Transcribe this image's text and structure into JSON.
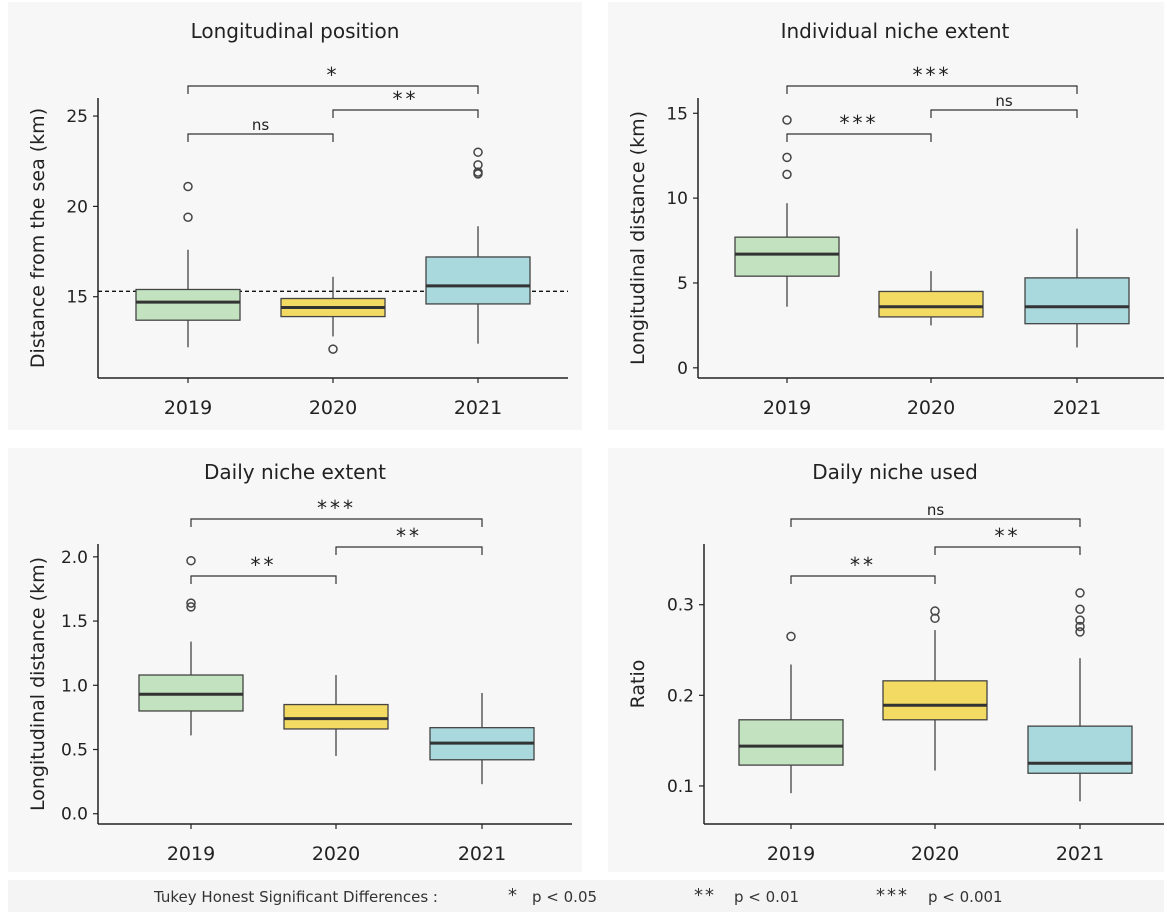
{
  "chart_data": [
    {
      "type": "boxplot",
      "title": "Longitudinal position",
      "ylabel": "Distance from the sea (km)",
      "categories": [
        "2019",
        "2020",
        "2021"
      ],
      "ylim": [
        10.5,
        26
      ],
      "yticks": [
        15,
        20,
        25
      ],
      "hline": 15.3,
      "boxes": [
        {
          "category": "2019",
          "min": 12.2,
          "q1": 13.7,
          "median": 14.7,
          "q3": 15.4,
          "max": 17.6,
          "outliers": [
            19.4,
            21.1
          ],
          "color": "#c3e3c0"
        },
        {
          "category": "2020",
          "min": 12.8,
          "q1": 13.9,
          "median": 14.4,
          "q3": 14.9,
          "max": 16.1,
          "outliers": [
            12.1
          ],
          "color": "#f3da63"
        },
        {
          "category": "2021",
          "min": 12.4,
          "q1": 14.6,
          "median": 15.6,
          "q3": 17.2,
          "max": 18.9,
          "outliers": [
            21.8,
            21.9,
            22.3,
            23.0
          ],
          "color": "#a9d8dd"
        }
      ],
      "comparisons": [
        {
          "from": "2019",
          "to": "2021",
          "label": "*"
        },
        {
          "from": "2020",
          "to": "2021",
          "label": "**"
        },
        {
          "from": "2019",
          "to": "2020",
          "label": "ns"
        }
      ]
    },
    {
      "type": "boxplot",
      "title": "Individual niche extent",
      "ylabel": "Longitudinal distance (km)",
      "categories": [
        "2019",
        "2020",
        "2021"
      ],
      "ylim": [
        -0.6,
        15.9
      ],
      "yticks": [
        0,
        5,
        10,
        15
      ],
      "boxes": [
        {
          "category": "2019",
          "min": 3.6,
          "q1": 5.4,
          "median": 6.7,
          "q3": 7.7,
          "max": 9.7,
          "outliers": [
            11.4,
            12.4,
            14.6
          ],
          "color": "#c3e3c0"
        },
        {
          "category": "2020",
          "min": 2.5,
          "q1": 3.0,
          "median": 3.6,
          "q3": 4.5,
          "max": 5.7,
          "outliers": [],
          "color": "#f3da63"
        },
        {
          "category": "2021",
          "min": 1.2,
          "q1": 2.6,
          "median": 3.6,
          "q3": 5.3,
          "max": 8.2,
          "outliers": [],
          "color": "#a9d8dd"
        }
      ],
      "comparisons": [
        {
          "from": "2019",
          "to": "2021",
          "label": "***"
        },
        {
          "from": "2020",
          "to": "2021",
          "label": "ns"
        },
        {
          "from": "2019",
          "to": "2020",
          "label": "***"
        }
      ]
    },
    {
      "type": "boxplot",
      "title": "Daily niche extent",
      "ylabel": "Longitudinal distance (km)",
      "categories": [
        "2019",
        "2020",
        "2021"
      ],
      "ylim": [
        -0.08,
        2.1
      ],
      "yticks": [
        0.0,
        0.5,
        1.0,
        1.5,
        2.0
      ],
      "boxes": [
        {
          "category": "2019",
          "min": 0.61,
          "q1": 0.8,
          "median": 0.93,
          "q3": 1.08,
          "max": 1.34,
          "outliers": [
            1.61,
            1.64,
            1.97
          ],
          "color": "#c3e3c0"
        },
        {
          "category": "2020",
          "min": 0.45,
          "q1": 0.66,
          "median": 0.74,
          "q3": 0.85,
          "max": 1.08,
          "outliers": [],
          "color": "#f3da63"
        },
        {
          "category": "2021",
          "min": 0.23,
          "q1": 0.42,
          "median": 0.55,
          "q3": 0.67,
          "max": 0.94,
          "outliers": [],
          "color": "#a9d8dd"
        }
      ],
      "comparisons": [
        {
          "from": "2019",
          "to": "2021",
          "label": "***"
        },
        {
          "from": "2020",
          "to": "2021",
          "label": "**"
        },
        {
          "from": "2019",
          "to": "2020",
          "label": "**"
        }
      ]
    },
    {
      "type": "boxplot",
      "title": "Daily niche used",
      "ylabel": "Ratio",
      "categories": [
        "2019",
        "2020",
        "2021"
      ],
      "ylim": [
        0.058,
        0.367
      ],
      "yticks": [
        0.1,
        0.2,
        0.3
      ],
      "boxes": [
        {
          "category": "2019",
          "min": 0.092,
          "q1": 0.123,
          "median": 0.144,
          "q3": 0.173,
          "max": 0.234,
          "outliers": [
            0.265
          ],
          "color": "#c3e3c0"
        },
        {
          "category": "2020",
          "min": 0.117,
          "q1": 0.173,
          "median": 0.189,
          "q3": 0.216,
          "max": 0.272,
          "outliers": [
            0.285,
            0.293
          ],
          "color": "#f3da63"
        },
        {
          "category": "2021",
          "min": 0.083,
          "q1": 0.114,
          "median": 0.125,
          "q3": 0.166,
          "max": 0.241,
          "outliers": [
            0.27,
            0.276,
            0.283,
            0.295,
            0.313
          ],
          "color": "#a9d8dd"
        }
      ],
      "comparisons": [
        {
          "from": "2019",
          "to": "2021",
          "label": "ns"
        },
        {
          "from": "2020",
          "to": "2021",
          "label": "**"
        },
        {
          "from": "2019",
          "to": "2020",
          "label": "**"
        }
      ]
    }
  ],
  "legend": {
    "prefix": "Tukey Honest Significant Differences :",
    "items": [
      {
        "stars": "*",
        "text": "p < 0.05"
      },
      {
        "stars": "**",
        "text": "p < 0.01"
      },
      {
        "stars": "***",
        "text": "p < 0.001"
      }
    ]
  }
}
